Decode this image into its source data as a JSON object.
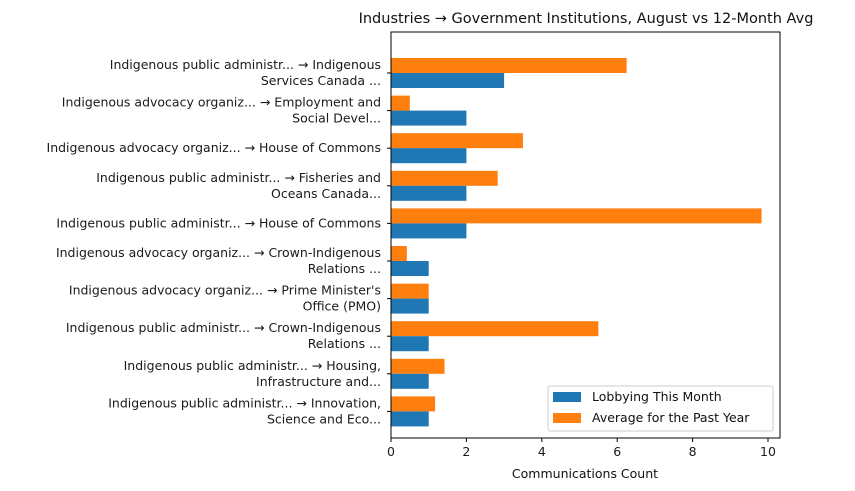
{
  "chart_data": {
    "type": "bar",
    "orientation": "horizontal",
    "title": "Industries → Government Institutions, August vs 12-Month Avg",
    "xlabel": "Communications Count",
    "ylabel": "",
    "xlim": [
      0,
      10.3
    ],
    "xticks": [
      0,
      2,
      4,
      6,
      8,
      10
    ],
    "xtick_labels": [
      "0",
      "2",
      "4",
      "6",
      "8",
      "10"
    ],
    "grid": false,
    "legend_position": "lower-right",
    "categories": [
      [
        "Indigenous public administr... → Indigenous",
        "Services Canada ..."
      ],
      [
        "Indigenous advocacy organiz... → Employment and",
        "Social Devel..."
      ],
      [
        "Indigenous advocacy organiz... → House of Commons"
      ],
      [
        "Indigenous public administr... → Fisheries and",
        "Oceans Canada..."
      ],
      [
        "Indigenous public administr... → House of Commons"
      ],
      [
        "Indigenous advocacy organiz... → Crown-Indigenous",
        "Relations ..."
      ],
      [
        "Indigenous advocacy organiz... → Prime Minister's",
        "Office (PMO)"
      ],
      [
        "Indigenous public administr... → Crown-Indigenous",
        "Relations ..."
      ],
      [
        "Indigenous public administr... → Housing,",
        "Infrastructure and..."
      ],
      [
        "Indigenous public administr... → Innovation,",
        "Science and Eco..."
      ]
    ],
    "series": [
      {
        "name": "Lobbying This Month",
        "color": "#1f77b4",
        "values": [
          3,
          2,
          2,
          2,
          2,
          1,
          1,
          1,
          1,
          1
        ]
      },
      {
        "name": "Average for the Past Year",
        "color": "#ff7f0e",
        "values": [
          6.25,
          0.5,
          3.5,
          2.83,
          9.83,
          0.42,
          1.0,
          5.5,
          1.42,
          1.17
        ]
      }
    ]
  }
}
